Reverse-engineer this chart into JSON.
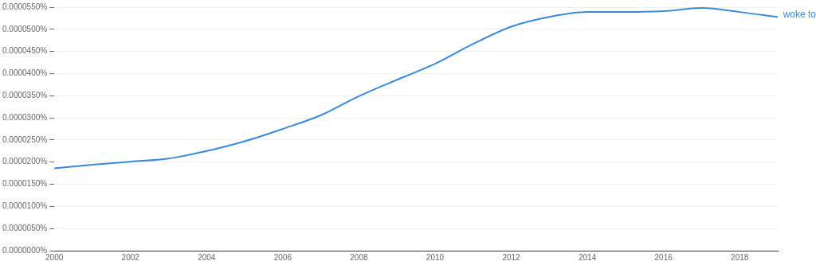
{
  "chart_data": {
    "type": "line",
    "x": [
      2000,
      2001,
      2002,
      2003,
      2004,
      2005,
      2006,
      2007,
      2008,
      2009,
      2010,
      2011,
      2012,
      2013,
      2014,
      2015,
      2016,
      2017,
      2018,
      2019
    ],
    "series": [
      {
        "name": "woke to",
        "color": "#3b8ad9",
        "values": [
          1.86e-05,
          1.94e-05,
          2.01e-05,
          2.08e-05,
          2.25e-05,
          2.47e-05,
          2.75e-05,
          3.06e-05,
          3.49e-05,
          3.86e-05,
          4.22e-05,
          4.67e-05,
          5.06e-05,
          5.28e-05,
          5.39e-05,
          5.39e-05,
          5.41e-05,
          5.48e-05,
          5.39e-05,
          5.28e-05
        ]
      }
    ],
    "xlim": [
      2000,
      2019
    ],
    "xticks": [
      2000,
      2002,
      2004,
      2006,
      2008,
      2010,
      2012,
      2014,
      2016,
      2018
    ],
    "ylim": [
      0,
      5.5e-05
    ],
    "yticks": [
      {
        "value": 0,
        "label": "0.0000000%"
      },
      {
        "value": 5e-06,
        "label": "0.0000050%"
      },
      {
        "value": 1e-05,
        "label": "0.0000100%"
      },
      {
        "value": 1.5e-05,
        "label": "0.0000150%"
      },
      {
        "value": 2e-05,
        "label": "0.0000200%"
      },
      {
        "value": 2.5e-05,
        "label": "0.0000250%"
      },
      {
        "value": 3e-05,
        "label": "0.0000300%"
      },
      {
        "value": 3.5e-05,
        "label": "0.0000350%"
      },
      {
        "value": 4e-05,
        "label": "0.0000400%"
      },
      {
        "value": 4.5e-05,
        "label": "0.0000450%"
      },
      {
        "value": 5e-05,
        "label": "0.0000500%"
      },
      {
        "value": 5.5e-05,
        "label": "0.0000550%"
      }
    ],
    "grid": "y",
    "legend": false,
    "marker": "none",
    "line_style": "solid"
  }
}
